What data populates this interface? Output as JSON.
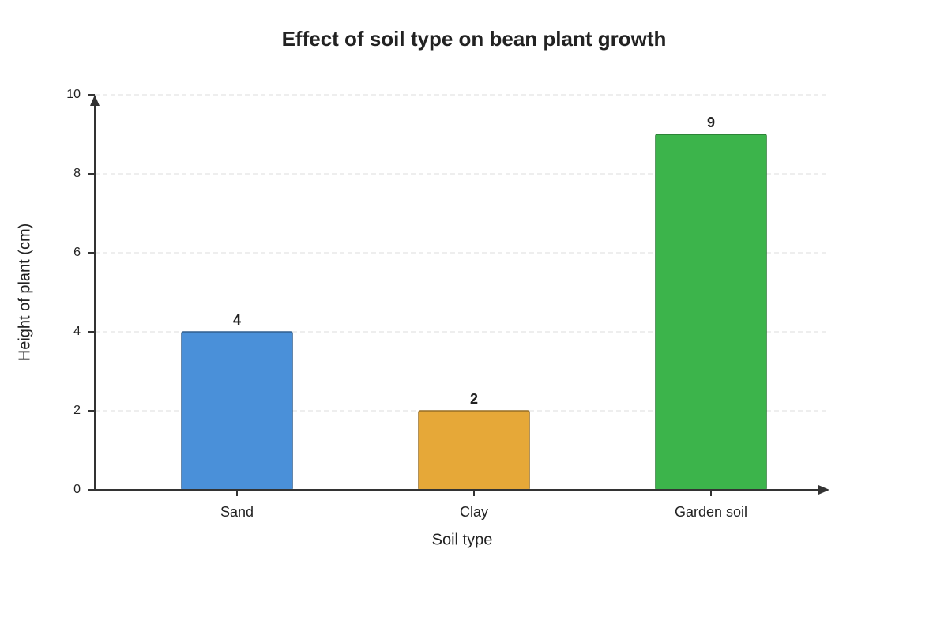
{
  "chart_data": {
    "type": "bar",
    "title": "Effect of soil type on bean plant growth",
    "x_label": "Soil type",
    "y_label": "Height of plant (cm)",
    "categories": [
      "Sand",
      "Clay",
      "Garden soil"
    ],
    "values": [
      4,
      2,
      9
    ],
    "colors": [
      "#4a90d9",
      "#e6a838",
      "#3cb44b"
    ],
    "ylim": [
      0,
      10
    ],
    "yticks": [
      0,
      2,
      4,
      6,
      8,
      10
    ],
    "grid": true
  }
}
